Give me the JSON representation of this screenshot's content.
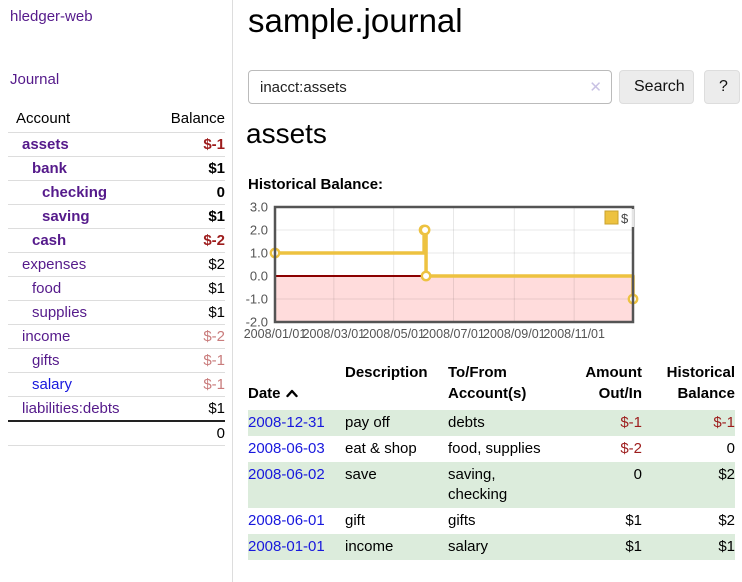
{
  "colors": {
    "link_purple": "#551a8b",
    "link_blue": "#1818dd",
    "negative_strong": "#9d1c1c",
    "negative_soft": "#c97c7c",
    "row_green": "#dcecdc",
    "chart_line": "#edc240",
    "chart_negative_band": "#ffdcdc",
    "chart_zero_line": "#8b0000",
    "chart_frame": "#545454",
    "chart_grid": "rgba(0,0,0,0.09)"
  },
  "sidebar": {
    "app_title": "hledger-web",
    "nav": [
      {
        "label": "Journal"
      }
    ],
    "table": {
      "headers": [
        "Account",
        "Balance"
      ],
      "rows": [
        {
          "account": "assets",
          "balance": "$-1",
          "depth": 0,
          "bold": true,
          "neg": "strong",
          "link": "purple"
        },
        {
          "account": "bank",
          "balance": "$1",
          "depth": 1,
          "bold": true,
          "neg": "",
          "link": "purple"
        },
        {
          "account": "checking",
          "balance": "0",
          "depth": 2,
          "bold": true,
          "neg": "",
          "link": "purple"
        },
        {
          "account": "saving",
          "balance": "$1",
          "depth": 2,
          "bold": true,
          "neg": "",
          "link": "purple"
        },
        {
          "account": "cash",
          "balance": "$-2",
          "depth": 1,
          "bold": true,
          "neg": "strong",
          "link": "purple"
        },
        {
          "account": "expenses",
          "balance": "$2",
          "depth": 0,
          "bold": false,
          "neg": "",
          "link": "purple"
        },
        {
          "account": "food",
          "balance": "$1",
          "depth": 1,
          "bold": false,
          "neg": "",
          "link": "purple"
        },
        {
          "account": "supplies",
          "balance": "$1",
          "depth": 1,
          "bold": false,
          "neg": "",
          "link": "purple"
        },
        {
          "account": "income",
          "balance": "$-2",
          "depth": 0,
          "bold": false,
          "neg": "soft",
          "link": "purple"
        },
        {
          "account": "gifts",
          "balance": "$-1",
          "depth": 1,
          "bold": false,
          "neg": "soft",
          "link": "purple"
        },
        {
          "account": "salary",
          "balance": "$-1",
          "depth": 1,
          "bold": false,
          "neg": "soft",
          "link": "blue"
        },
        {
          "account": "liabilities:debts",
          "balance": "$1",
          "depth": 0,
          "bold": false,
          "neg": "",
          "link": "purple"
        }
      ],
      "total": "0"
    }
  },
  "main": {
    "title": "sample.journal",
    "search": {
      "value": "inacct:assets",
      "clear_icon": "✕",
      "button_label": "Search",
      "help_label": "?"
    },
    "account_heading": "assets",
    "section_label": "Historical Balance:"
  },
  "chart_data": {
    "type": "line",
    "step": true,
    "title": "Historical Balance",
    "series": [
      {
        "name": "$",
        "points": [
          [
            "2008-01-01",
            1
          ],
          [
            "2008-06-01",
            2
          ],
          [
            "2008-06-02",
            2
          ],
          [
            "2008-06-03",
            0
          ],
          [
            "2008-12-31",
            -1
          ]
        ]
      }
    ],
    "xlim": [
      "2008-01-01",
      "2008-12-31"
    ],
    "ylim": [
      -2,
      3
    ],
    "yticks": [
      3.0,
      2.0,
      1.0,
      0.0,
      -1.0,
      -2.0
    ],
    "xticks": [
      {
        "date": "2008-01-01",
        "label": "2008/01/01"
      },
      {
        "date": "2008-03-01",
        "label": "2008/03/01"
      },
      {
        "date": "2008-05-01",
        "label": "2008/05/01"
      },
      {
        "date": "2008-07-01",
        "label": "2008/07/01"
      },
      {
        "date": "2008-09-01",
        "label": "2008/09/01"
      },
      {
        "date": "2008-11-01",
        "label": "2008/11/01"
      }
    ],
    "grid": true,
    "negative_region_shaded": true,
    "legend_position": "top-right"
  },
  "register": {
    "headers": [
      "Date",
      "Description",
      "To/From\nAccount(s)",
      "Amount\nOut/In",
      "Historical\nBalance"
    ],
    "sort": {
      "column": "Date",
      "direction": "ascending"
    },
    "rows": [
      {
        "date": "2008-12-31",
        "description": "pay off",
        "accounts": "debts",
        "amount": "$-1",
        "balance": "$-1",
        "amount_neg": true,
        "balance_neg": true
      },
      {
        "date": "2008-06-03",
        "description": "eat & shop",
        "accounts": "food, supplies",
        "amount": "$-2",
        "balance": "0",
        "amount_neg": true,
        "balance_neg": false
      },
      {
        "date": "2008-06-02",
        "description": "save",
        "accounts": "saving,\nchecking",
        "amount": "0",
        "balance": "$2",
        "amount_neg": false,
        "balance_neg": false
      },
      {
        "date": "2008-06-01",
        "description": "gift",
        "accounts": "gifts",
        "amount": "$1",
        "balance": "$2",
        "amount_neg": false,
        "balance_neg": false
      },
      {
        "date": "2008-01-01",
        "description": "income",
        "accounts": "salary",
        "amount": "$1",
        "balance": "$1",
        "amount_neg": false,
        "balance_neg": false
      }
    ]
  }
}
